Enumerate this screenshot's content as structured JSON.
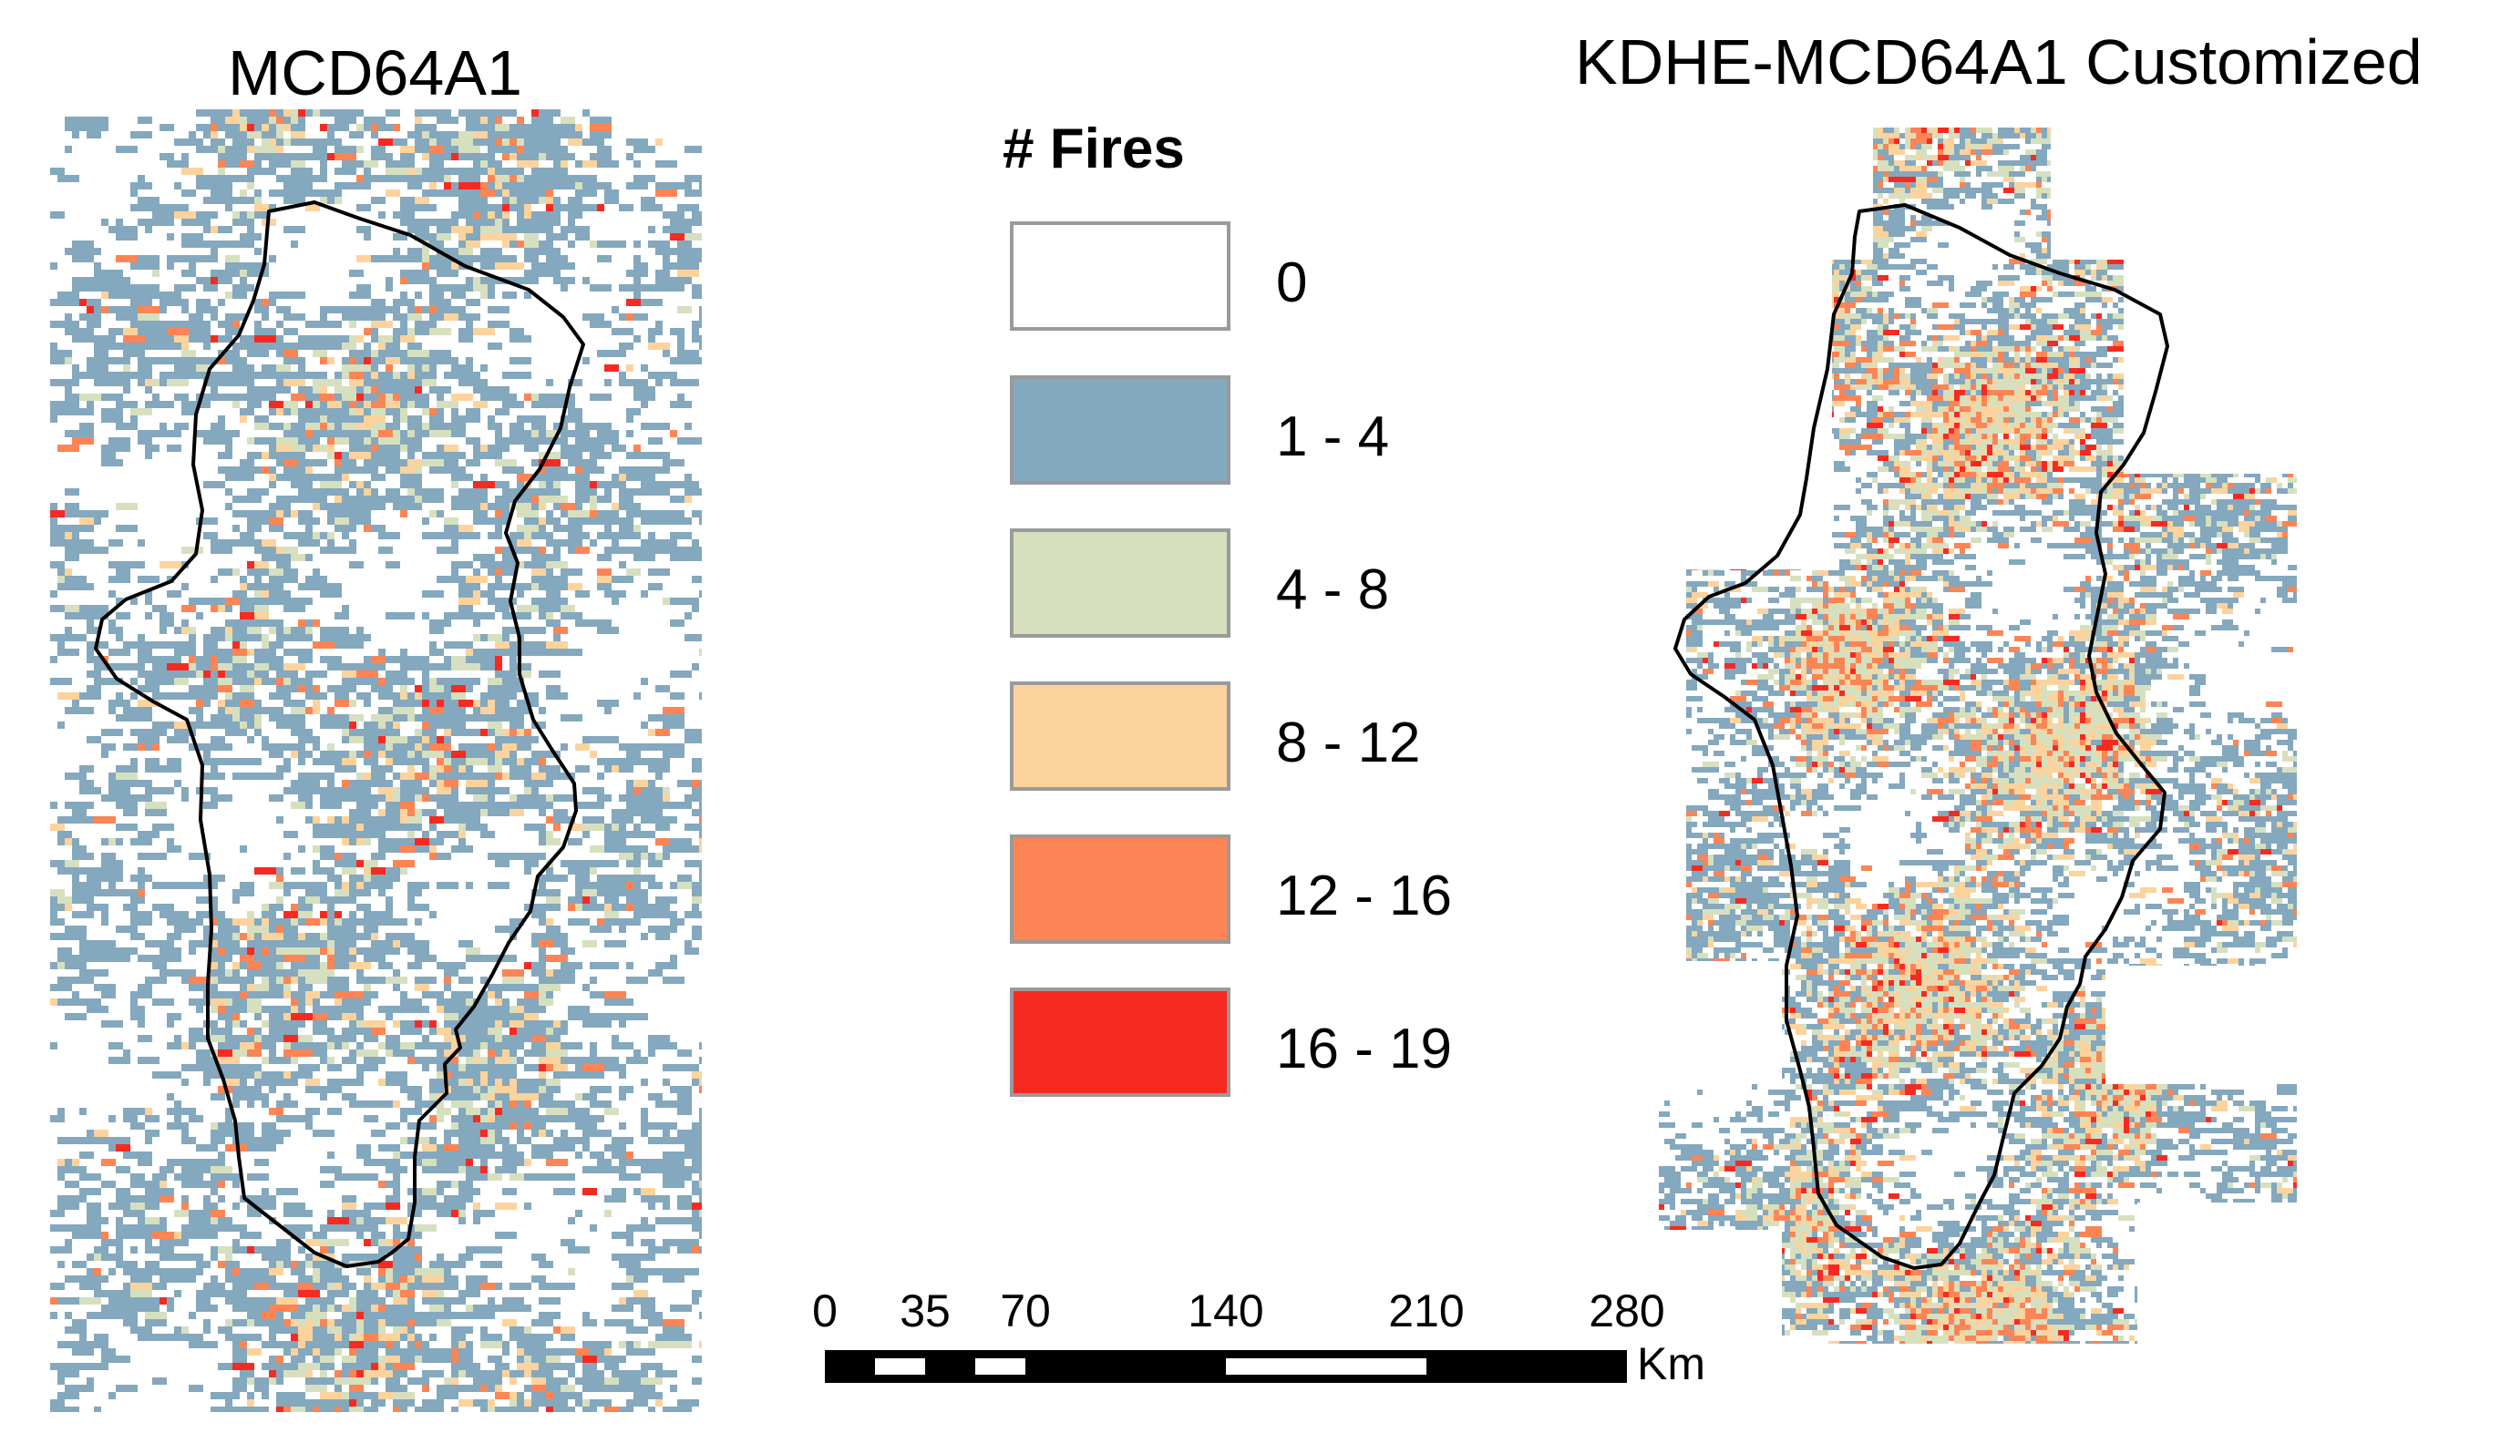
{
  "maps": {
    "left": {
      "title": "MCD64A1"
    },
    "right": {
      "title": "KDHE-MCD64A1 Customized"
    }
  },
  "legend": {
    "title": "# Fires",
    "classes": [
      {
        "label": "0",
        "color": "#ffffff"
      },
      {
        "label": "1 - 4",
        "color": "#84a8bd"
      },
      {
        "label": "4 - 8",
        "color": "#d6e0bf"
      },
      {
        "label": "8 - 12",
        "color": "#fcd39d"
      },
      {
        "label": "12 - 16",
        "color": "#fd8454"
      },
      {
        "label": "16 - 19",
        "color": "#f72a22"
      }
    ]
  },
  "scale_bar": {
    "ticks": [
      "0",
      "35",
      "70",
      "140",
      "210",
      "280"
    ],
    "tick_values": [
      0,
      35,
      70,
      140,
      210,
      280
    ],
    "unit": "Km"
  },
  "colors": {
    "boundary": "#000000",
    "swatch_border": "#9a9a9a"
  }
}
